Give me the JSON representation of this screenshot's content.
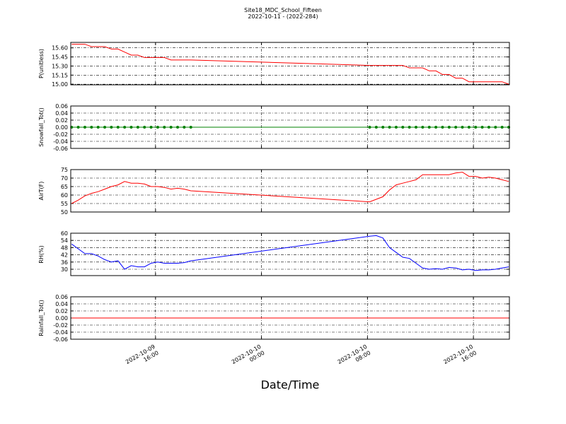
{
  "title": "Site18_MDC_School_Fifteen",
  "subtitle": "2022-10-11 - (2022-284)",
  "xlabel": "Date/Time",
  "xlim": [
    "2022-10-09 09:36",
    "2022-10-10 18:43"
  ],
  "xticks": [
    {
      "value": "2022-10-09 16:00",
      "label": "2022-10-09\n16:00"
    },
    {
      "value": "2022-10-10 00:00",
      "label": "2022-10-10\n00:00"
    },
    {
      "value": "2022-10-10 08:00",
      "label": "2022-10-10\n08:00"
    },
    {
      "value": "2022-10-10 16:00",
      "label": "2022-10-10\n16:00"
    }
  ],
  "x": [
    "2022-10-09 09:40",
    "2022-10-09 10:10",
    "2022-10-09 10:40",
    "2022-10-09 11:10",
    "2022-10-09 11:40",
    "2022-10-09 12:10",
    "2022-10-09 12:40",
    "2022-10-09 13:10",
    "2022-10-09 13:40",
    "2022-10-09 14:10",
    "2022-10-09 14:40",
    "2022-10-09 15:10",
    "2022-10-09 15:40",
    "2022-10-09 16:10",
    "2022-10-09 16:40",
    "2022-10-09 17:10",
    "2022-10-09 17:40",
    "2022-10-09 18:10",
    "2022-10-09 18:40",
    "2022-10-10 08:10",
    "2022-10-10 08:40",
    "2022-10-10 09:10",
    "2022-10-10 09:40",
    "2022-10-10 10:10",
    "2022-10-10 10:40",
    "2022-10-10 11:10",
    "2022-10-10 11:40",
    "2022-10-10 12:10",
    "2022-10-10 12:40",
    "2022-10-10 13:10",
    "2022-10-10 13:40",
    "2022-10-10 14:10",
    "2022-10-10 14:40",
    "2022-10-10 15:10",
    "2022-10-10 15:40",
    "2022-10-10 16:10",
    "2022-10-10 16:40",
    "2022-10-10 17:10",
    "2022-10-10 17:40",
    "2022-10-10 18:10",
    "2022-10-10 18:40"
  ],
  "chart_data": [
    {
      "type": "line",
      "ylabel": "P(unitless)",
      "ylim": [
        14.99,
        15.69
      ],
      "grid": true,
      "yticks": [
        {
          "value": 15.0,
          "label": "15.00"
        },
        15.15,
        {
          "value": 15.3,
          "label": "15.30"
        },
        15.45,
        {
          "value": 15.6,
          "label": "15.60"
        }
      ],
      "series": [
        {
          "color": "#ff0000",
          "marker": false,
          "values": [
            15.66,
            15.66,
            15.66,
            15.62,
            15.62,
            15.62,
            15.58,
            15.58,
            15.53,
            15.48,
            15.48,
            15.44,
            15.44,
            15.44,
            15.44,
            15.4,
            15.4,
            15.4,
            15.4,
            15.31,
            15.31,
            15.31,
            15.31,
            15.31,
            15.31,
            15.27,
            15.27,
            15.27,
            15.22,
            15.22,
            15.16,
            15.16,
            15.1,
            15.1,
            15.04,
            15.04,
            15.04,
            15.04,
            15.04,
            15.04,
            15.0
          ]
        }
      ]
    },
    {
      "type": "line",
      "ylabel": "Snowfall_Tot()",
      "ylim": [
        -0.06,
        0.06
      ],
      "grid": true,
      "yticks": [
        -0.06,
        -0.04,
        -0.02,
        {
          "value": 0,
          "label": "0.00"
        },
        0.02,
        0.04,
        0.06
      ],
      "series": [
        {
          "color": "#008000",
          "marker": true,
          "values": [
            0,
            0,
            0,
            0,
            0,
            0,
            0,
            0,
            0,
            0,
            0,
            0,
            0,
            0,
            0,
            0,
            0,
            0,
            0,
            0,
            0,
            0,
            0,
            0,
            0,
            0,
            0,
            0,
            0,
            0,
            0,
            0,
            0,
            0,
            0,
            0,
            0,
            0,
            0,
            0,
            0
          ]
        }
      ]
    },
    {
      "type": "line",
      "ylabel": "AirT(F)",
      "ylim": [
        50,
        75
      ],
      "grid": true,
      "yticks": [
        50,
        55,
        60,
        65,
        70,
        75
      ],
      "series": [
        {
          "color": "#ff0000",
          "marker": false,
          "values": [
            55,
            57,
            59.5,
            61,
            62,
            63.5,
            65,
            66,
            68,
            67,
            67,
            66.5,
            65,
            65,
            64.5,
            63.5,
            64,
            63.5,
            62.5,
            56,
            57.5,
            59,
            63,
            66,
            67,
            68,
            69,
            72,
            72,
            72,
            72,
            72,
            73,
            73.5,
            71,
            71,
            70,
            70.5,
            70,
            69,
            68
          ]
        }
      ]
    },
    {
      "type": "line",
      "ylabel": "RH(%)",
      "ylim": [
        24.7,
        60
      ],
      "grid": true,
      "yticks": [
        30,
        36,
        42,
        48,
        54,
        60
      ],
      "series": [
        {
          "color": "#0000ff",
          "marker": false,
          "values": [
            51,
            47,
            43,
            43,
            41,
            38,
            36,
            37,
            30,
            33,
            32,
            32,
            35,
            36,
            35,
            35,
            35,
            35.5,
            37,
            57.5,
            58,
            56,
            48,
            44,
            40,
            39,
            35,
            31,
            30,
            30.5,
            30,
            31.5,
            31,
            29.5,
            30,
            29,
            29.5,
            29.5,
            30,
            31,
            32
          ]
        }
      ]
    },
    {
      "type": "line",
      "ylabel": "Rainfall_Tot()",
      "ylim": [
        -0.06,
        0.06
      ],
      "grid": true,
      "yticks": [
        -0.06,
        -0.04,
        -0.02,
        {
          "value": 0,
          "label": "0.00"
        },
        0.02,
        0.04,
        0.06
      ],
      "series": [
        {
          "color": "#ff0000",
          "marker": false,
          "values": [
            0,
            0,
            0,
            0,
            0,
            0,
            0,
            0,
            0,
            0,
            0,
            0,
            0,
            0,
            0,
            0,
            0,
            0,
            0,
            0,
            0,
            0,
            0,
            0,
            0,
            0,
            0,
            0,
            0,
            0,
            0,
            0,
            0,
            0,
            0,
            0,
            0,
            0,
            0,
            0,
            0
          ]
        }
      ]
    }
  ]
}
